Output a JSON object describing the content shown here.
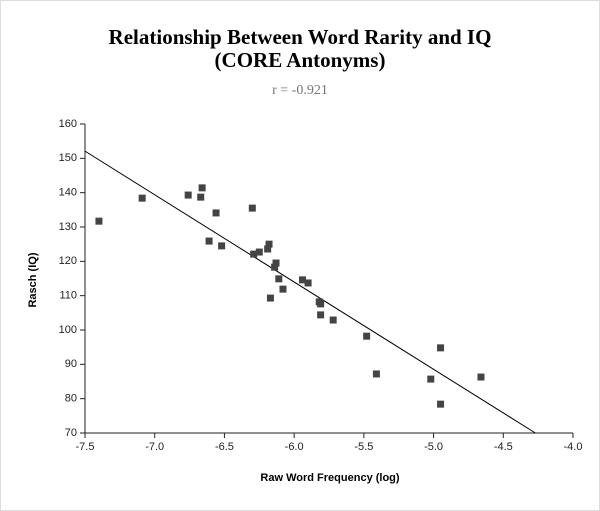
{
  "chart_data": {
    "type": "scatter",
    "title": "Relationship Between Word Rarity and IQ",
    "subtitle": "(CORE Antonyms)",
    "annotation": "r = -0.921",
    "x_label": "Raw Word Frequency (log)",
    "y_label": "Rasch (IQ)",
    "color": "#444444",
    "x": [
      -7.4,
      -7.09,
      -6.76,
      -6.66,
      -6.67,
      -6.56,
      -6.61,
      -6.52,
      -6.3,
      -6.29,
      -6.25,
      -6.18,
      -6.19,
      -6.13,
      -6.14,
      -6.11,
      -6.17,
      -6.08,
      -5.94,
      -5.9,
      -5.82,
      -5.81,
      -5.81,
      -5.72,
      -5.48,
      -5.41,
      -5.02,
      -4.95,
      -4.95,
      -4.66
    ],
    "values": [
      131.7,
      138.4,
      139.3,
      141.4,
      138.7,
      134.1,
      125.9,
      124.5,
      135.5,
      122.1,
      122.7,
      125.0,
      123.6,
      119.5,
      118.3,
      114.9,
      109.3,
      111.9,
      114.6,
      113.7,
      108.2,
      107.6,
      104.4,
      102.9,
      98.2,
      87.2,
      85.7,
      94.8,
      78.4,
      86.3
    ],
    "trendline": {
      "x": [
        -7.5,
        -4.27
      ],
      "values": [
        152.1,
        70
      ],
      "color": "#000000"
    },
    "xlim": [
      -7.5,
      -4.0
    ],
    "ylim": [
      70,
      160
    ],
    "xticks": [
      -7.5,
      {
        "value": -7,
        "label": "-7.0"
      },
      -6.5,
      {
        "value": -6,
        "label": "-6.0"
      },
      -5.5,
      {
        "value": -5,
        "label": "-5.0"
      },
      -4.5,
      {
        "value": -4,
        "label": "-4.0"
      }
    ],
    "yticks": [
      70,
      80,
      90,
      100,
      110,
      120,
      130,
      140,
      150,
      160
    ]
  }
}
